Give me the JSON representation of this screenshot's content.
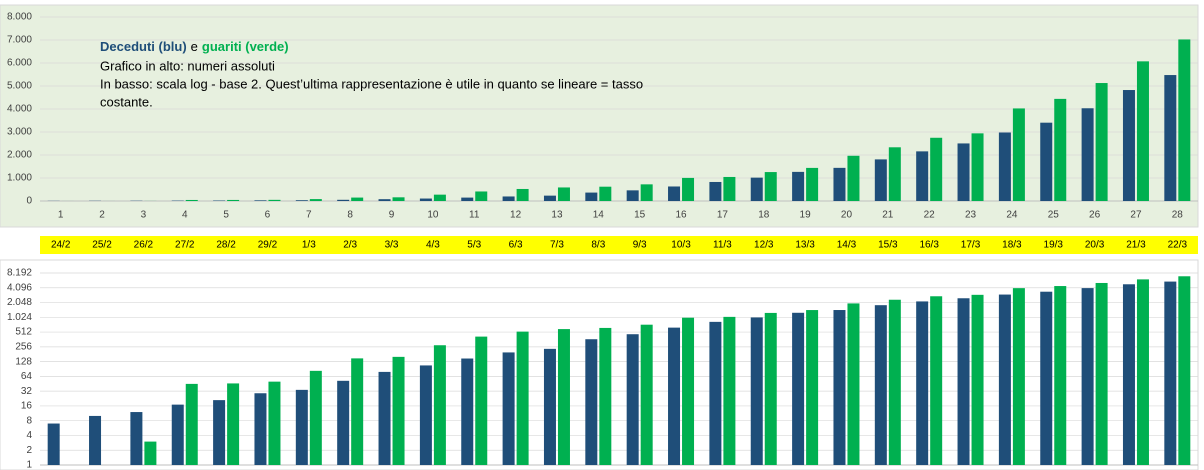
{
  "chart_data": [
    {
      "type": "bar",
      "annotation": {
        "title_parts": [
          "Deceduti (blu)",
          "e",
          "guariti (verde)"
        ],
        "lines": [
          "Grafico in alto: numeri assoluti",
          "In basso: scala log - base 2. Quest’ultima rappresentazione è utile in quanto se lineare = tasso",
          "costante."
        ]
      },
      "categories": [
        "1",
        "2",
        "3",
        "4",
        "5",
        "6",
        "7",
        "8",
        "9",
        "10",
        "11",
        "12",
        "13",
        "14",
        "15",
        "16",
        "17",
        "18",
        "19",
        "20",
        "21",
        "22",
        "23",
        "24",
        "25",
        "26",
        "27",
        "28"
      ],
      "series": [
        {
          "name": "Deceduti",
          "color": "#1f4e79",
          "values": [
            7,
            10,
            12,
            17,
            21,
            29,
            34,
            52,
            79,
            107,
            148,
            197,
            233,
            366,
            463,
            631,
            827,
            1016,
            1266,
            1441,
            1809,
            2158,
            2503,
            2978,
            3405,
            4032,
            4825,
            5476
          ]
        },
        {
          "name": "Guariti",
          "color": "#00b050",
          "values": [
            1,
            1,
            3,
            45,
            46,
            50,
            83,
            149,
            160,
            276,
            414,
            523,
            589,
            622,
            724,
            1004,
            1045,
            1258,
            1439,
            1966,
            2335,
            2749,
            2941,
            4025,
            4440,
            5129,
            6072,
            7024
          ]
        }
      ],
      "ylim": [
        0,
        8000
      ],
      "yticks": [
        0,
        {
          "value": 1000,
          "label": "1.000"
        },
        {
          "value": 2000,
          "label": "2.000"
        },
        {
          "value": 3000,
          "label": "3.000"
        },
        {
          "value": 4000,
          "label": "4.000"
        },
        {
          "value": 5000,
          "label": "5.000"
        },
        {
          "value": 6000,
          "label": "6.000"
        },
        {
          "value": 7000,
          "label": "7.000"
        },
        {
          "value": 8000,
          "label": "8.000"
        }
      ],
      "grid": true,
      "background": "#e7f0df"
    },
    {
      "type": "bar",
      "log_scale": true,
      "log_base": 2,
      "series": [
        {
          "name": "Deceduti",
          "color": "#1f4e79",
          "values": [
            7,
            10,
            12,
            17,
            21,
            29,
            34,
            52,
            79,
            107,
            148,
            197,
            233,
            366,
            463,
            631,
            827,
            1016,
            1266,
            1441,
            1809,
            2158,
            2503,
            2978,
            3405,
            4032,
            4825,
            5476
          ]
        },
        {
          "name": "Guariti",
          "color": "#00b050",
          "values": [
            1,
            1,
            3,
            45,
            46,
            50,
            83,
            149,
            160,
            276,
            414,
            523,
            589,
            622,
            724,
            1004,
            1045,
            1258,
            1439,
            1966,
            2335,
            2749,
            2941,
            4025,
            4440,
            5129,
            6072,
            7024
          ]
        }
      ],
      "ylim": [
        1,
        8192
      ],
      "yticks": [
        1,
        2,
        4,
        8,
        16,
        32,
        64,
        128,
        256,
        512,
        {
          "value": 1024,
          "label": "1.024"
        },
        {
          "value": 2048,
          "label": "2.048"
        },
        {
          "value": 4096,
          "label": "4.096"
        },
        {
          "value": 8192,
          "label": "8.192"
        }
      ],
      "grid": true,
      "background": "#ffffff"
    }
  ],
  "dates": [
    "24/2",
    "25/2",
    "26/2",
    "27/2",
    "28/2",
    "29/2",
    "1/3",
    "2/3",
    "3/3",
    "4/3",
    "5/3",
    "6/3",
    "7/3",
    "8/3",
    "9/3",
    "10/3",
    "11/3",
    "12/3",
    "13/3",
    "14/3",
    "15/3",
    "16/3",
    "17/3",
    "18/3",
    "19/3",
    "20/3",
    "21/3",
    "22/3"
  ]
}
